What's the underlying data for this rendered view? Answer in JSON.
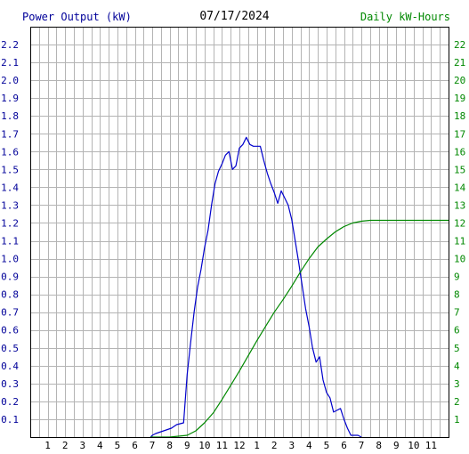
{
  "header": {
    "left_label": "Power Output (kW)",
    "center_date": "07/17/2024",
    "right_label": "Daily kW-Hours"
  },
  "colors": {
    "left_axis_label": "#000099",
    "right_axis_label": "#008800",
    "power_line": "#0000cc",
    "energy_line": "#008800",
    "grid": "#b4b4b4",
    "frame": "#000000",
    "background": "#ffffff"
  },
  "chart_data": {
    "type": "line",
    "title": "07/17/2024",
    "x_tick_labels": [
      "1",
      "2",
      "3",
      "4",
      "5",
      "6",
      "7",
      "8",
      "9",
      "10",
      "11",
      "12",
      "1",
      "2",
      "3",
      "4",
      "5",
      "6",
      "7",
      "8",
      "9",
      "10",
      "11"
    ],
    "x_range_hours": [
      0,
      24
    ],
    "y_left": {
      "label": "Power Output (kW)",
      "range": [
        0,
        2.3
      ],
      "ticks": [
        "0.1",
        "0.2",
        "0.3",
        "0.4",
        "0.5",
        "0.6",
        "0.7",
        "0.8",
        "0.9",
        "1.0",
        "1.1",
        "1.2",
        "1.3",
        "1.4",
        "1.5",
        "1.6",
        "1.7",
        "1.8",
        "1.9",
        "2.0",
        "2.1",
        "2.2"
      ]
    },
    "y_right": {
      "label": "Daily kW-Hours",
      "range": [
        0,
        23
      ],
      "ticks": [
        "1",
        "2",
        "3",
        "4",
        "5",
        "6",
        "7",
        "8",
        "9",
        "10",
        "11",
        "12",
        "13",
        "14",
        "15",
        "16",
        "17",
        "18",
        "19",
        "20",
        "21",
        "22"
      ]
    },
    "grid": true,
    "series": [
      {
        "name": "Power Output (kW)",
        "axis": "left",
        "points": [
          [
            6.9,
            0.0
          ],
          [
            7.0,
            0.01
          ],
          [
            7.2,
            0.02
          ],
          [
            7.5,
            0.03
          ],
          [
            7.8,
            0.04
          ],
          [
            8.1,
            0.05
          ],
          [
            8.4,
            0.07
          ],
          [
            8.8,
            0.08
          ],
          [
            9.0,
            0.35
          ],
          [
            9.2,
            0.53
          ],
          [
            9.4,
            0.7
          ],
          [
            9.6,
            0.84
          ],
          [
            9.8,
            0.94
          ],
          [
            10.0,
            1.06
          ],
          [
            10.2,
            1.16
          ],
          [
            10.4,
            1.3
          ],
          [
            10.6,
            1.42
          ],
          [
            10.8,
            1.49
          ],
          [
            11.0,
            1.53
          ],
          [
            11.2,
            1.58
          ],
          [
            11.4,
            1.6
          ],
          [
            11.6,
            1.5
          ],
          [
            11.8,
            1.52
          ],
          [
            12.0,
            1.62
          ],
          [
            12.2,
            1.64
          ],
          [
            12.4,
            1.68
          ],
          [
            12.6,
            1.64
          ],
          [
            12.8,
            1.63
          ],
          [
            13.0,
            1.63
          ],
          [
            13.2,
            1.63
          ],
          [
            13.4,
            1.55
          ],
          [
            13.6,
            1.48
          ],
          [
            13.8,
            1.42
          ],
          [
            14.0,
            1.37
          ],
          [
            14.2,
            1.31
          ],
          [
            14.4,
            1.38
          ],
          [
            14.6,
            1.34
          ],
          [
            14.8,
            1.3
          ],
          [
            15.0,
            1.22
          ],
          [
            15.2,
            1.1
          ],
          [
            15.4,
            0.98
          ],
          [
            15.6,
            0.85
          ],
          [
            15.8,
            0.72
          ],
          [
            16.0,
            0.62
          ],
          [
            16.2,
            0.5
          ],
          [
            16.4,
            0.42
          ],
          [
            16.6,
            0.45
          ],
          [
            16.8,
            0.32
          ],
          [
            17.0,
            0.25
          ],
          [
            17.2,
            0.22
          ],
          [
            17.4,
            0.14
          ],
          [
            17.6,
            0.15
          ],
          [
            17.8,
            0.16
          ],
          [
            18.0,
            0.1
          ],
          [
            18.2,
            0.05
          ],
          [
            18.4,
            0.01
          ],
          [
            18.8,
            0.01
          ],
          [
            19.0,
            0.0
          ]
        ]
      },
      {
        "name": "Daily kW-Hours",
        "axis": "right",
        "points": [
          [
            6.9,
            0.0
          ],
          [
            8.0,
            0.0
          ],
          [
            9.0,
            0.1
          ],
          [
            9.5,
            0.35
          ],
          [
            10.0,
            0.8
          ],
          [
            10.5,
            1.35
          ],
          [
            11.0,
            2.1
          ],
          [
            11.5,
            2.9
          ],
          [
            12.0,
            3.7
          ],
          [
            12.5,
            4.55
          ],
          [
            13.0,
            5.4
          ],
          [
            13.5,
            6.2
          ],
          [
            14.0,
            7.0
          ],
          [
            14.5,
            7.7
          ],
          [
            15.0,
            8.45
          ],
          [
            15.5,
            9.25
          ],
          [
            16.0,
            10.0
          ],
          [
            16.5,
            10.65
          ],
          [
            17.0,
            11.1
          ],
          [
            17.5,
            11.5
          ],
          [
            18.0,
            11.8
          ],
          [
            18.5,
            12.0
          ],
          [
            19.0,
            12.1
          ],
          [
            19.5,
            12.15
          ],
          [
            20.0,
            12.15
          ],
          [
            22.0,
            12.15
          ],
          [
            24.0,
            12.15
          ]
        ]
      }
    ]
  }
}
